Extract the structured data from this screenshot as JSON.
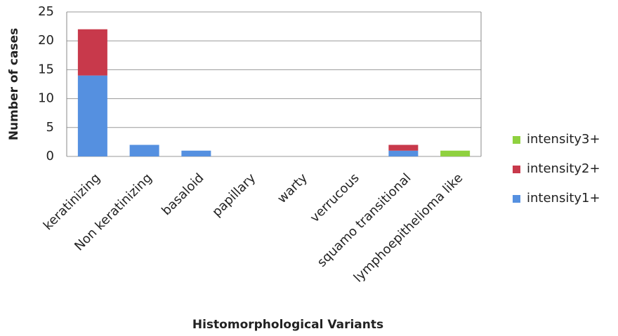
{
  "chart_data": {
    "type": "stacked-bar",
    "x_label": "Histomorphological Variants",
    "y_label": "Number of cases",
    "categories": [
      "keratinizing",
      "Non keratinizing",
      "basaloid",
      "papillary",
      "warty",
      "verrucous",
      "squamo transitional",
      "lymphoepithelioma like"
    ],
    "series": [
      {
        "name": "intensity1+",
        "color": "#5590e0",
        "values": [
          14,
          2,
          1,
          0,
          0,
          0,
          1,
          0
        ]
      },
      {
        "name": "intensity2+",
        "color": "#c8394b",
        "values": [
          8,
          0,
          0,
          0,
          0,
          0,
          1,
          0
        ]
      },
      {
        "name": "intensity3+",
        "color": "#8fd13f",
        "values": [
          0,
          0,
          0,
          0,
          0,
          0,
          0,
          1
        ]
      }
    ],
    "ylim": [
      0,
      25
    ],
    "yticks": [
      0,
      5,
      10,
      15,
      20,
      25
    ],
    "grid": true,
    "legend": "right"
  }
}
